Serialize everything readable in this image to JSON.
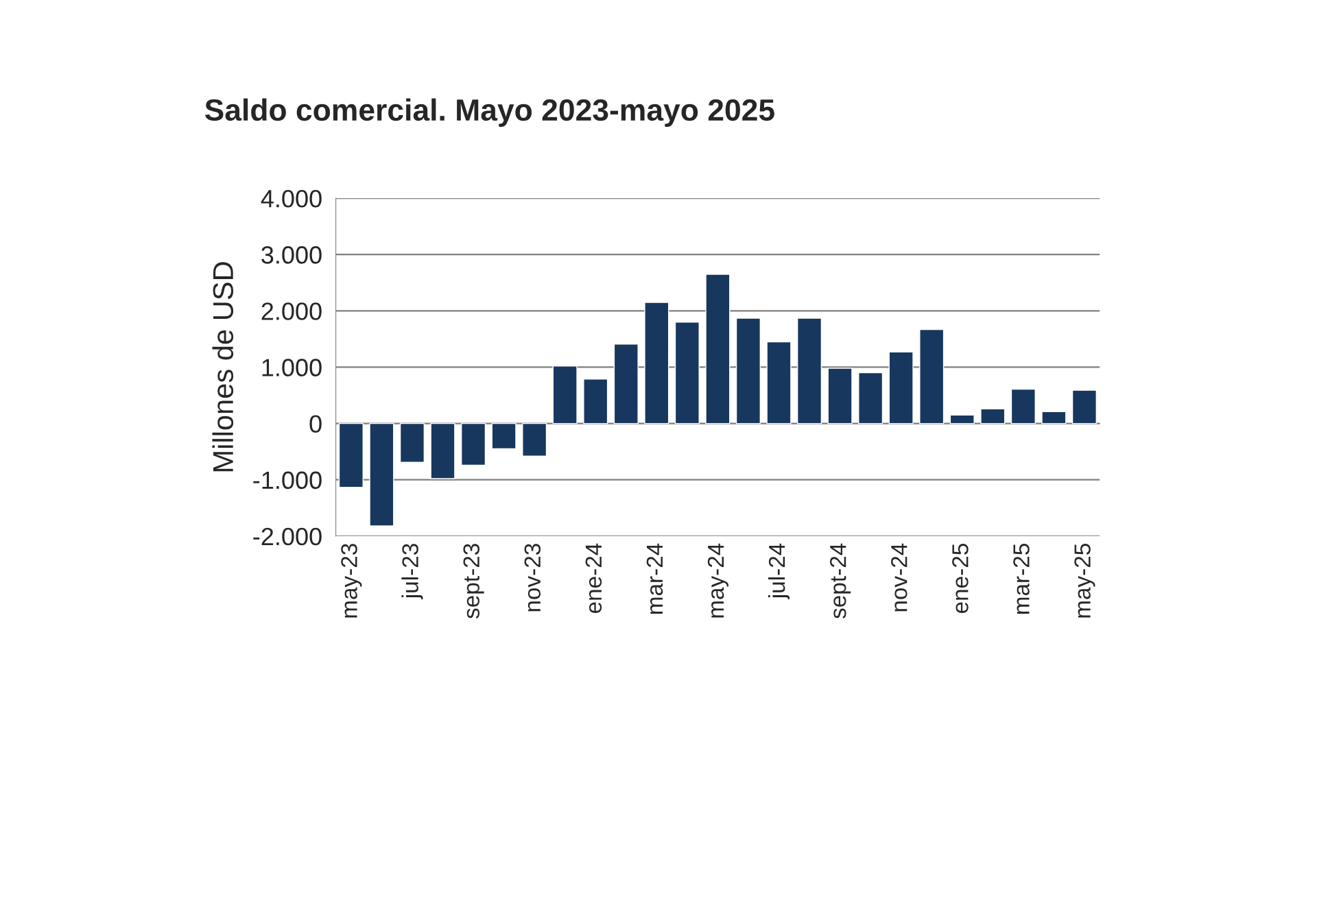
{
  "chart_data": {
    "type": "bar",
    "title": "Saldo comercial. Mayo 2023-mayo 2025",
    "ylabel": "Millones de USD",
    "categories": [
      "may-23",
      null,
      "jul-23",
      null,
      "sept-23",
      null,
      "nov-23",
      null,
      "ene-24",
      null,
      "mar-24",
      null,
      "may-24",
      null,
      "jul-24",
      null,
      "sept-24",
      null,
      "nov-24",
      null,
      "ene-25",
      null,
      "mar-25",
      null,
      "may-25"
    ],
    "values": [
      -1135,
      -1820,
      -690,
      -980,
      -740,
      -450,
      -580,
      1020,
      790,
      1410,
      2150,
      1800,
      2650,
      1870,
      1450,
      1870,
      980,
      900,
      1270,
      1670,
      150,
      260,
      610,
      210,
      590
    ],
    "color": "#17375e",
    "ylim": [
      -2000,
      4000
    ],
    "yticks": [
      {
        "value": -2000,
        "label": "-2.000"
      },
      {
        "value": -1000,
        "label": "-1.000"
      },
      0,
      {
        "value": 1000,
        "label": "1.000"
      },
      {
        "value": 2000,
        "label": "2.000"
      },
      {
        "value": 3000,
        "label": "3.000"
      },
      {
        "value": 4000,
        "label": "4.000"
      }
    ],
    "grid": "y"
  }
}
